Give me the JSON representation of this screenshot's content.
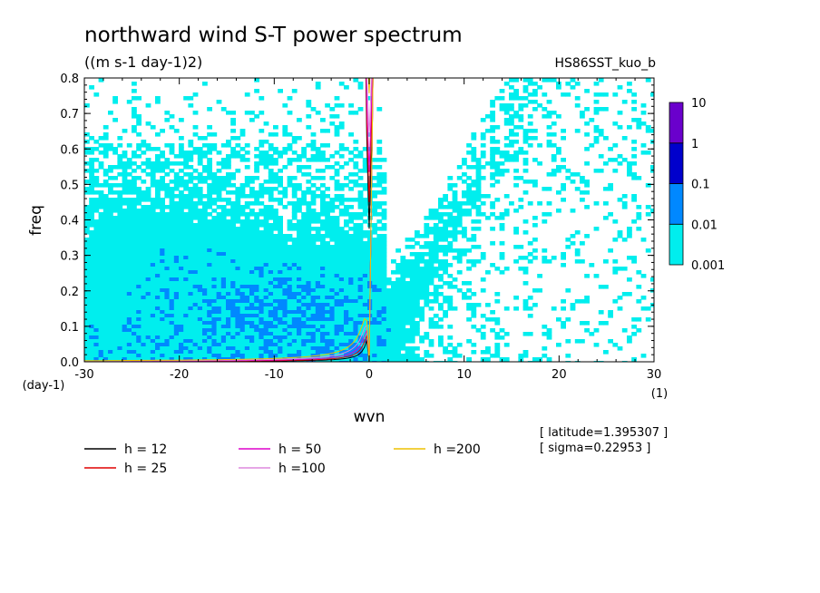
{
  "chart_data": {
    "type": "heatmap",
    "title": "northward wind S-T power spectrum",
    "subtitle": "((m s-1 day-1)2)",
    "source_label": "HS86SST_kuo_b",
    "xlabel": "wvn",
    "ylabel": "freq",
    "x_unit": "(1)",
    "y_unit": "(day-1)",
    "xlim": [
      -30,
      30
    ],
    "ylim": [
      0,
      0.8
    ],
    "x_ticks": [
      -30,
      -20,
      -10,
      0,
      10,
      20,
      30
    ],
    "x_tick_labels": [
      "-30",
      "-20",
      "-10",
      "0",
      "10",
      "20",
      "30"
    ],
    "y_ticks": [
      0,
      0.1,
      0.2,
      0.3,
      0.4,
      0.5,
      0.6,
      0.7,
      0.8
    ],
    "y_tick_labels": [
      "0.0",
      "0.1",
      "0.2",
      "0.3",
      "0.4",
      "0.5",
      "0.6",
      "0.7",
      "0.8"
    ],
    "colorbar": {
      "levels": [
        "0.001",
        "0.01",
        "0.1",
        "1",
        "10"
      ],
      "colors": [
        "#00eeee",
        "#0088ff",
        "#0000cc",
        "#6a00cc"
      ]
    },
    "dispersion_curves": [
      {
        "name": "h = 12",
        "h": 12,
        "color": "#000000"
      },
      {
        "name": "h = 25",
        "h": 25,
        "color": "#e00000"
      },
      {
        "name": "h = 50",
        "h": 50,
        "color": "#dd00cc"
      },
      {
        "name": "h =100",
        "h": 100,
        "color": "#dd88dd"
      },
      {
        "name": "h =200",
        "h": 200,
        "color": "#eec000"
      }
    ],
    "annotations": {
      "latitude": "[ latitude=1.395307 ]",
      "sigma": "[ sigma=0.22953 ]"
    },
    "grid": false,
    "legend_position": "bottom-left"
  }
}
